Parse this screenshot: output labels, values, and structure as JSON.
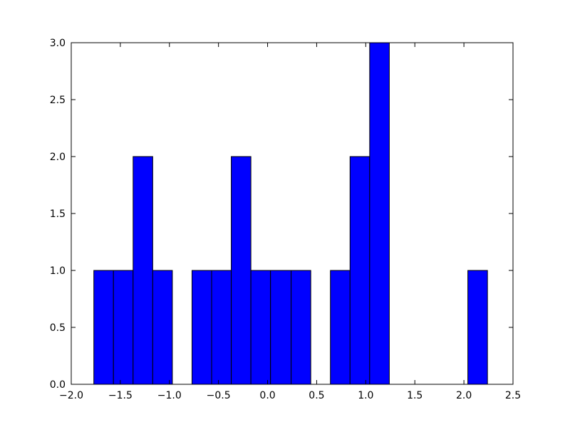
{
  "chart_data": {
    "type": "histogram",
    "color": "#0000ff",
    "edgecolor": "#000000",
    "bins": [
      -1.77,
      -1.57,
      -1.37,
      -1.17,
      -0.97,
      -0.77,
      -0.57,
      -0.37,
      -0.17,
      0.03,
      0.24,
      0.44,
      0.64,
      0.84,
      1.04,
      1.24,
      1.44,
      1.64,
      1.84,
      2.04,
      2.24
    ],
    "values": [
      1,
      1,
      2,
      1,
      0,
      1,
      1,
      2,
      1,
      1,
      1,
      0,
      1,
      2,
      3,
      0,
      0,
      0,
      0,
      1
    ],
    "xlim": [
      -2.0,
      2.5
    ],
    "xticks": [
      {
        "value": -2.0,
        "label": "−2.0"
      },
      {
        "value": -1.5,
        "label": "−1.5"
      },
      {
        "value": -1.0,
        "label": "−1.0"
      },
      {
        "value": -0.5,
        "label": "−0.5"
      },
      {
        "value": 0,
        "label": "0.0"
      },
      0.5,
      {
        "value": 1,
        "label": "1.0"
      },
      1.5,
      {
        "value": 2,
        "label": "2.0"
      },
      2.5
    ],
    "ylim": [
      0,
      3
    ],
    "yticks": [
      {
        "value": 0,
        "label": "0.0"
      },
      0.5,
      {
        "value": 1,
        "label": "1.0"
      },
      1.5,
      {
        "value": 2,
        "label": "2.0"
      },
      2.5,
      {
        "value": 3,
        "label": "3.0"
      }
    ],
    "grid": false
  }
}
